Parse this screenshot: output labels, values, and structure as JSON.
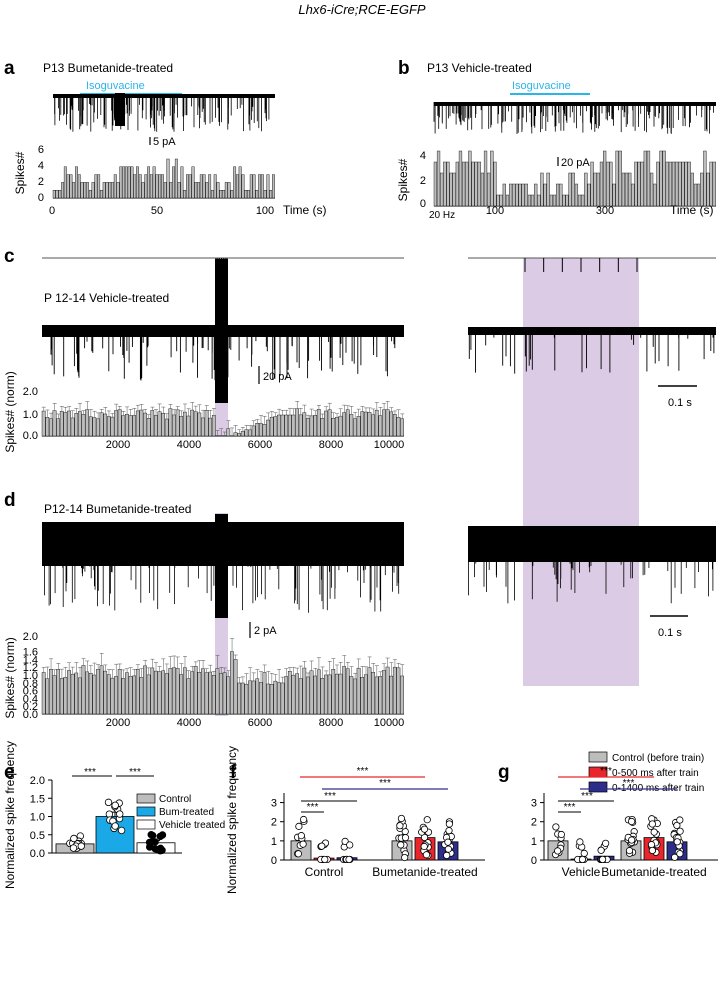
{
  "figure_title": "Lhx6-iCre;RCE-EGFP",
  "colors": {
    "isoguvacine": "#2bb6e8",
    "shade": "#dccbe4",
    "bar_gray": "#bdbdbd",
    "bar_blue_e": "#1aa9e6",
    "red": "#e8262b",
    "navy": "#2d2d8a"
  },
  "panels": {
    "a": {
      "letter": "a",
      "title": "P13  Bumetanide-treated",
      "drug": "Isoguvacine",
      "scale": "5 pA",
      "ylabel": "Spikes#",
      "xlabel": "Time (s)",
      "yticks": [
        "0",
        "2",
        "4",
        "6"
      ],
      "xticks": [
        "0",
        "50",
        "100"
      ]
    },
    "b": {
      "letter": "b",
      "title": "P13 Vehicle-treated",
      "drug": "Isoguvacine",
      "scale": "20 pA",
      "ylabel": "Spikes#",
      "xlabel": "Time (s)",
      "rate": "20 Hz",
      "yticks": [
        "0",
        "2",
        "4"
      ],
      "xticks": [
        "100",
        "300"
      ]
    },
    "c": {
      "letter": "c",
      "title": "P 12-14 Vehicle-treated",
      "scale": "20 pA",
      "ylabel": "Spikes#  (norm)",
      "yticks": [
        "0.0",
        "1.0",
        "2.0"
      ],
      "xticks": [
        "2000",
        "4000",
        "6000",
        "8000",
        "10000"
      ],
      "time_scale": "0.1 s"
    },
    "d": {
      "letter": "d",
      "title": "P12-14 Bumetanide-treated",
      "scale": "2 pA",
      "ylabel": "Spikes#  (norm)",
      "yticks": [
        "0.0",
        "0.2",
        "0.4",
        "0.6",
        "0.8",
        "1.0",
        "1.2",
        "1.4",
        "1.6",
        "2.0"
      ],
      "xticks": [
        "2000",
        "4000",
        "6000",
        "8000",
        "10000"
      ],
      "time_scale": "0.1 s"
    },
    "e": {
      "letter": "e"
    },
    "f": {
      "letter": "f"
    },
    "g": {
      "letter": "g"
    }
  },
  "legend_fg": {
    "items": [
      "Control (before train)",
      "0-500 ms after train",
      "0-1400 ms after train"
    ]
  },
  "chart_data": [
    {
      "id": "e",
      "type": "bar",
      "title": "",
      "ylabel": "Normalized spike frequency",
      "ylim": [
        0,
        2.0
      ],
      "yticks": [
        "0.0",
        "0.5",
        "1.0",
        "1.5",
        "2.0"
      ],
      "categories": [
        "Control",
        "Bum-treated",
        "Vehicle treated"
      ],
      "values": [
        0.25,
        1.0,
        0.28
      ],
      "errors": [
        0.04,
        0.12,
        0.06
      ],
      "legend": [
        "Control",
        "Bum-treated",
        "Vehicle treated"
      ],
      "significance": [
        "***",
        "***"
      ]
    },
    {
      "id": "f",
      "type": "bar",
      "ylabel": "Normalized  spike frequency",
      "ylim": [
        0,
        3.5
      ],
      "yticks": [
        "0",
        "1",
        "2",
        "3"
      ],
      "groups": [
        "Control",
        "Bumetanide-treated"
      ],
      "series": [
        {
          "name": "Control (before train)",
          "values": [
            1.0,
            1.0
          ]
        },
        {
          "name": "0-500 ms after train",
          "values": [
            0.1,
            1.17
          ]
        },
        {
          "name": "0-1400 ms after train",
          "values": [
            0.12,
            0.95
          ]
        }
      ],
      "significance": [
        "***",
        "***",
        "***",
        "***"
      ]
    },
    {
      "id": "g",
      "type": "bar",
      "ylabel": "",
      "ylim": [
        0,
        3.5
      ],
      "yticks": [
        "0",
        "1",
        "2",
        "3"
      ],
      "groups": [
        "Vehicle",
        "Bumetanide-treated"
      ],
      "series": [
        {
          "name": "Control (before train)",
          "values": [
            1.0,
            1.0
          ]
        },
        {
          "name": "0-500 ms after train",
          "values": [
            0.05,
            1.17
          ]
        },
        {
          "name": "0-1400 ms after train",
          "values": [
            0.2,
            0.95
          ]
        }
      ],
      "significance": [
        "***",
        "***",
        "***",
        "***"
      ]
    }
  ]
}
